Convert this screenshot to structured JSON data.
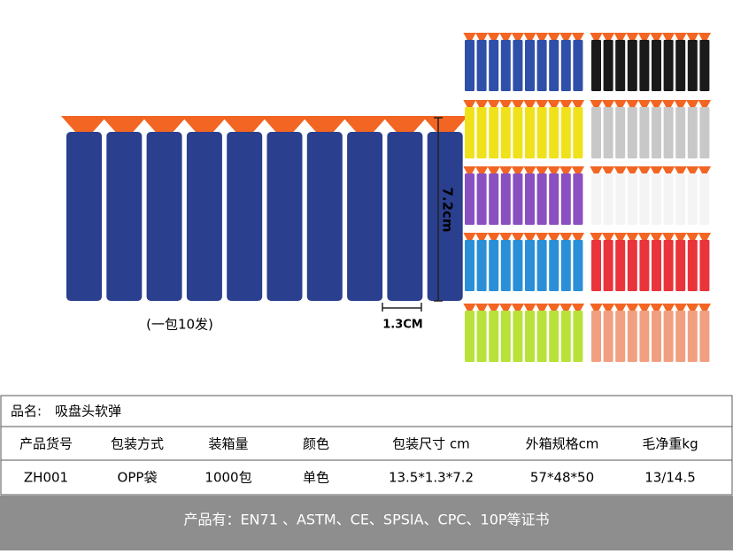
{
  "image_labels": {
    "length": "7.2cm",
    "width": "1.3CM",
    "pack": "(一包10发)"
  },
  "product": {
    "label": "品名:",
    "name": "吸盘头软弹"
  },
  "table": {
    "headers": [
      "产品货号",
      "包装方式",
      "装箱量",
      "颜色",
      "包装尺寸 cm",
      "外箱规格cm",
      "毛净重kg"
    ],
    "rows": [
      [
        "ZH001",
        "OPP袋",
        "1000包",
        "单色",
        "13.5*1.3*7.2",
        "57*48*50",
        "13/14.5"
      ]
    ]
  },
  "footer": "产品有：EN71 、ASTM、CE、SPSIA、CPC、10P等证书"
}
